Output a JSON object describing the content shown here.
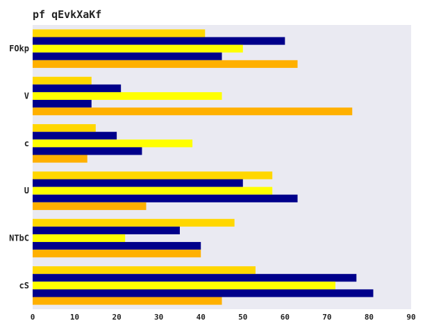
{
  "chart_data": {
    "type": "bar",
    "orientation": "horizontal",
    "title": "pf qEvkXaKf",
    "xlabel": "",
    "ylabel": "",
    "categories": [
      "FOkp",
      "V",
      "c",
      "U",
      "NTbC",
      "cS"
    ],
    "xlim": [
      0,
      90
    ],
    "xticks": [
      0,
      10,
      20,
      30,
      40,
      50,
      60,
      70,
      80,
      90
    ],
    "grid": false,
    "legend": "none",
    "background": "#eaeaf2",
    "series": [
      {
        "color": "#ffd700",
        "values": [
          41,
          14,
          15,
          57,
          48,
          53
        ]
      },
      {
        "color": "#00008b",
        "values": [
          60,
          21,
          20,
          50,
          35,
          77
        ]
      },
      {
        "color": "#ffff00",
        "values": [
          50,
          45,
          38,
          57,
          22,
          72
        ]
      },
      {
        "color": "#00008b",
        "values": [
          45,
          14,
          26,
          63,
          40,
          81
        ]
      },
      {
        "color": "#ffb000",
        "values": [
          63,
          76,
          13,
          27,
          40,
          45
        ]
      }
    ]
  }
}
